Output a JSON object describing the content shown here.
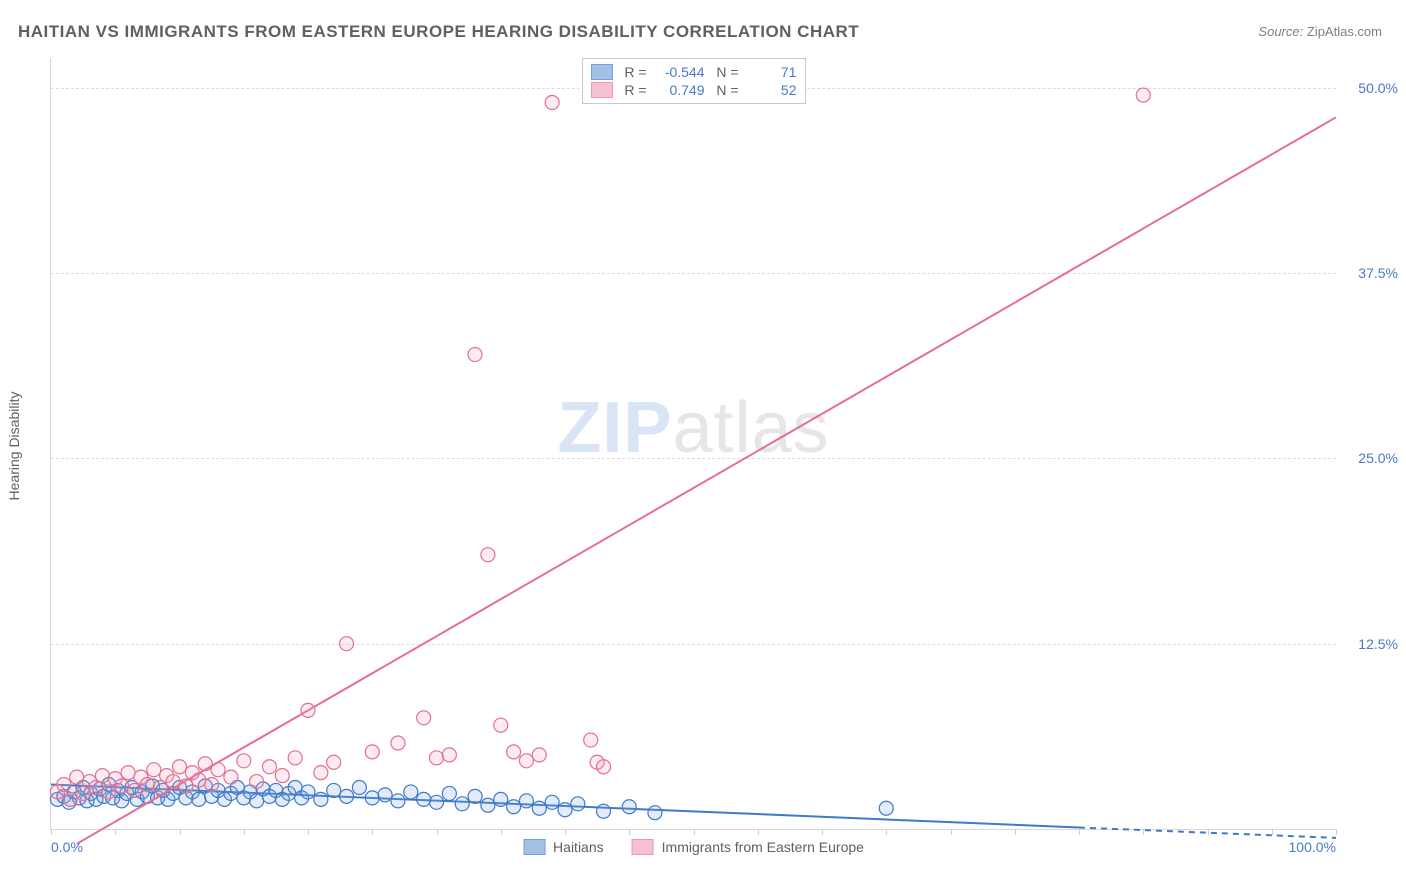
{
  "title": "HAITIAN VS IMMIGRANTS FROM EASTERN EUROPE HEARING DISABILITY CORRELATION CHART",
  "source_label": "Source:",
  "source_value": "ZipAtlas.com",
  "ylabel": "Hearing Disability",
  "watermark_a": "ZIP",
  "watermark_b": "atlas",
  "chart": {
    "type": "scatter",
    "xlim": [
      0,
      100
    ],
    "ylim": [
      0,
      52
    ],
    "xticks": [
      0,
      100
    ],
    "xtick_labels": [
      "0.0%",
      "100.0%"
    ],
    "xtick_minor_count": 20,
    "yticks": [
      12.5,
      25.0,
      37.5,
      50.0
    ],
    "ytick_labels": [
      "12.5%",
      "25.0%",
      "37.5%",
      "50.0%"
    ],
    "grid_color": "#dcdcdc",
    "axis_color": "#d8d8d8",
    "tick_label_color": "#4a78c8",
    "background_color": "#ffffff",
    "marker_radius": 7,
    "marker_stroke_width": 1.2,
    "marker_fill_opacity": 0.22,
    "line_width": 2,
    "series": [
      {
        "name": "Haitians",
        "color_stroke": "#3f7ac9",
        "color_fill": "#7ba6db",
        "R": "-0.544",
        "N": "71",
        "regression": {
          "x1": 0,
          "y1": 3.0,
          "x2": 80,
          "y2": 0.1,
          "dash_after_x": 80,
          "x2d": 100,
          "y2d": -0.6
        },
        "points": [
          [
            0.5,
            2.0
          ],
          [
            1.0,
            2.2
          ],
          [
            1.4,
            1.8
          ],
          [
            1.8,
            2.5
          ],
          [
            2.2,
            2.1
          ],
          [
            2.5,
            2.8
          ],
          [
            2.8,
            1.9
          ],
          [
            3.1,
            2.4
          ],
          [
            3.5,
            2.0
          ],
          [
            3.8,
            2.7
          ],
          [
            4.1,
            2.2
          ],
          [
            4.5,
            3.0
          ],
          [
            4.8,
            2.1
          ],
          [
            5.2,
            2.6
          ],
          [
            5.5,
            1.9
          ],
          [
            5.9,
            2.4
          ],
          [
            6.3,
            2.8
          ],
          [
            6.7,
            2.0
          ],
          [
            7.1,
            2.5
          ],
          [
            7.5,
            2.2
          ],
          [
            7.9,
            2.9
          ],
          [
            8.3,
            2.1
          ],
          [
            8.7,
            2.6
          ],
          [
            9.1,
            2.0
          ],
          [
            9.5,
            2.4
          ],
          [
            10.0,
            2.8
          ],
          [
            10.5,
            2.1
          ],
          [
            11.0,
            2.5
          ],
          [
            11.5,
            2.0
          ],
          [
            12.0,
            2.9
          ],
          [
            12.5,
            2.2
          ],
          [
            13.0,
            2.6
          ],
          [
            13.5,
            2.0
          ],
          [
            14.0,
            2.4
          ],
          [
            14.5,
            2.8
          ],
          [
            15.0,
            2.1
          ],
          [
            15.5,
            2.5
          ],
          [
            16.0,
            1.9
          ],
          [
            16.5,
            2.7
          ],
          [
            17.0,
            2.2
          ],
          [
            17.5,
            2.6
          ],
          [
            18.0,
            2.0
          ],
          [
            18.5,
            2.4
          ],
          [
            19.0,
            2.8
          ],
          [
            19.5,
            2.1
          ],
          [
            20.0,
            2.5
          ],
          [
            21.0,
            2.0
          ],
          [
            22.0,
            2.6
          ],
          [
            23.0,
            2.2
          ],
          [
            24.0,
            2.8
          ],
          [
            25.0,
            2.1
          ],
          [
            26.0,
            2.3
          ],
          [
            27.0,
            1.9
          ],
          [
            28.0,
            2.5
          ],
          [
            29.0,
            2.0
          ],
          [
            30.0,
            1.8
          ],
          [
            31.0,
            2.4
          ],
          [
            32.0,
            1.7
          ],
          [
            33.0,
            2.2
          ],
          [
            34.0,
            1.6
          ],
          [
            35.0,
            2.0
          ],
          [
            36.0,
            1.5
          ],
          [
            37.0,
            1.9
          ],
          [
            38.0,
            1.4
          ],
          [
            39.0,
            1.8
          ],
          [
            40.0,
            1.3
          ],
          [
            41.0,
            1.7
          ],
          [
            43.0,
            1.2
          ],
          [
            45.0,
            1.5
          ],
          [
            47.0,
            1.1
          ],
          [
            65.0,
            1.4
          ]
        ]
      },
      {
        "name": "Immigrants from Eastern Europe",
        "color_stroke": "#e56f91",
        "color_fill": "#f2a6bb",
        "R": "0.749",
        "N": "52",
        "regression": {
          "x1": 2,
          "y1": -1.0,
          "x2": 100,
          "y2": 48.0
        },
        "points": [
          [
            0.5,
            2.5
          ],
          [
            1.0,
            3.0
          ],
          [
            1.5,
            2.0
          ],
          [
            2.0,
            3.5
          ],
          [
            2.5,
            2.4
          ],
          [
            3.0,
            3.2
          ],
          [
            3.5,
            2.8
          ],
          [
            4.0,
            3.6
          ],
          [
            4.5,
            2.5
          ],
          [
            5.0,
            3.4
          ],
          [
            5.5,
            2.9
          ],
          [
            6.0,
            3.8
          ],
          [
            6.5,
            2.6
          ],
          [
            7.0,
            3.5
          ],
          [
            7.5,
            3.0
          ],
          [
            8.0,
            4.0
          ],
          [
            8.5,
            2.8
          ],
          [
            9.0,
            3.6
          ],
          [
            9.5,
            3.2
          ],
          [
            10.0,
            4.2
          ],
          [
            10.5,
            2.9
          ],
          [
            11.0,
            3.8
          ],
          [
            11.5,
            3.3
          ],
          [
            12.0,
            4.4
          ],
          [
            12.5,
            3.0
          ],
          [
            13.0,
            4.0
          ],
          [
            14.0,
            3.5
          ],
          [
            15.0,
            4.6
          ],
          [
            16.0,
            3.2
          ],
          [
            17.0,
            4.2
          ],
          [
            18.0,
            3.6
          ],
          [
            19.0,
            4.8
          ],
          [
            20.0,
            8.0
          ],
          [
            21.0,
            3.8
          ],
          [
            22.0,
            4.5
          ],
          [
            23.0,
            12.5
          ],
          [
            25.0,
            5.2
          ],
          [
            27.0,
            5.8
          ],
          [
            29.0,
            7.5
          ],
          [
            30.0,
            4.8
          ],
          [
            31.0,
            5.0
          ],
          [
            33.0,
            32.0
          ],
          [
            34.0,
            18.5
          ],
          [
            35.0,
            7.0
          ],
          [
            36.0,
            5.2
          ],
          [
            37.0,
            4.6
          ],
          [
            38.0,
            5.0
          ],
          [
            39.0,
            49.0
          ],
          [
            42.0,
            6.0
          ],
          [
            42.5,
            4.5
          ],
          [
            43.0,
            4.2
          ],
          [
            85.0,
            49.5
          ]
        ]
      }
    ]
  },
  "stats_legend": {
    "r_label": "R =",
    "n_label": "N ="
  },
  "series_legend_labels": [
    "Haitians",
    "Immigrants from Eastern Europe"
  ]
}
